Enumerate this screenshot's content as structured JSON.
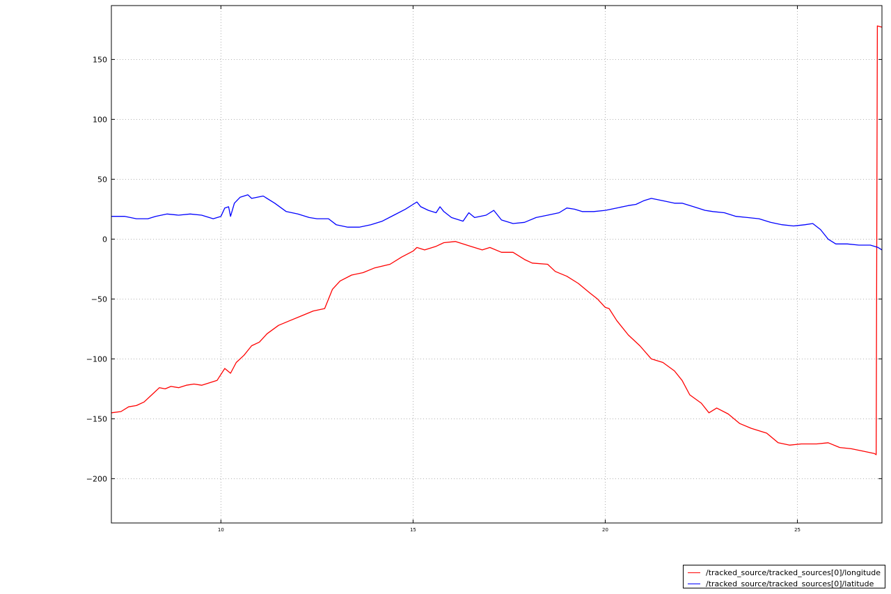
{
  "chart_data": {
    "type": "line",
    "title": "",
    "xlabel": "",
    "ylabel": "",
    "xlim": [
      7.15,
      27.2
    ],
    "ylim": [
      -237,
      195
    ],
    "grid": true,
    "legend_position": "bottom-right, outside plot",
    "x_ticks": [
      10,
      15,
      20,
      25
    ],
    "y_ticks": [
      150,
      100,
      50,
      0,
      -50,
      -100,
      -150,
      -200
    ],
    "y_tick_labels": [
      "150",
      "100",
      "50",
      "0",
      "−50",
      "−100",
      "−150",
      "−200"
    ],
    "series": [
      {
        "name": "/tracked_source/tracked_sources[0]/longitude",
        "color": "#ff0000",
        "points": [
          [
            7.15,
            -145
          ],
          [
            7.4,
            -144
          ],
          [
            7.6,
            -140
          ],
          [
            7.8,
            -139
          ],
          [
            8.0,
            -136
          ],
          [
            8.2,
            -130
          ],
          [
            8.4,
            -124
          ],
          [
            8.55,
            -125
          ],
          [
            8.7,
            -123
          ],
          [
            8.9,
            -124
          ],
          [
            9.1,
            -122
          ],
          [
            9.3,
            -121
          ],
          [
            9.5,
            -122
          ],
          [
            9.7,
            -120
          ],
          [
            9.9,
            -118
          ],
          [
            10.1,
            -108
          ],
          [
            10.25,
            -112
          ],
          [
            10.4,
            -103
          ],
          [
            10.6,
            -97
          ],
          [
            10.8,
            -89
          ],
          [
            11.0,
            -86
          ],
          [
            11.2,
            -79
          ],
          [
            11.5,
            -72
          ],
          [
            11.8,
            -68
          ],
          [
            12.1,
            -64
          ],
          [
            12.4,
            -60
          ],
          [
            12.7,
            -58
          ],
          [
            12.9,
            -42
          ],
          [
            13.1,
            -35
          ],
          [
            13.4,
            -30
          ],
          [
            13.7,
            -28
          ],
          [
            14.0,
            -24
          ],
          [
            14.4,
            -21
          ],
          [
            14.7,
            -15
          ],
          [
            15.0,
            -10
          ],
          [
            15.1,
            -7
          ],
          [
            15.3,
            -9
          ],
          [
            15.6,
            -6
          ],
          [
            15.8,
            -3
          ],
          [
            16.1,
            -2
          ],
          [
            16.3,
            -4
          ],
          [
            16.5,
            -6
          ],
          [
            16.8,
            -9
          ],
          [
            17.0,
            -7
          ],
          [
            17.3,
            -11
          ],
          [
            17.6,
            -11
          ],
          [
            17.9,
            -17
          ],
          [
            18.1,
            -20
          ],
          [
            18.5,
            -21
          ],
          [
            18.7,
            -27
          ],
          [
            19.0,
            -31
          ],
          [
            19.3,
            -37
          ],
          [
            19.6,
            -45
          ],
          [
            19.8,
            -50
          ],
          [
            20.0,
            -57
          ],
          [
            20.1,
            -58
          ],
          [
            20.3,
            -68
          ],
          [
            20.6,
            -80
          ],
          [
            20.9,
            -89
          ],
          [
            21.2,
            -100
          ],
          [
            21.5,
            -103
          ],
          [
            21.8,
            -110
          ],
          [
            22.0,
            -118
          ],
          [
            22.2,
            -130
          ],
          [
            22.5,
            -137
          ],
          [
            22.7,
            -145
          ],
          [
            22.9,
            -141
          ],
          [
            23.2,
            -146
          ],
          [
            23.5,
            -154
          ],
          [
            23.8,
            -158
          ],
          [
            24.2,
            -162
          ],
          [
            24.5,
            -170
          ],
          [
            24.8,
            -172
          ],
          [
            25.1,
            -171
          ],
          [
            25.5,
            -171
          ],
          [
            25.8,
            -170
          ],
          [
            26.1,
            -174
          ],
          [
            26.4,
            -175
          ],
          [
            26.7,
            -177
          ],
          [
            27.0,
            -179
          ],
          [
            27.05,
            -180
          ],
          [
            27.08,
            178
          ],
          [
            27.2,
            177
          ]
        ]
      },
      {
        "name": "/tracked_source/tracked_sources[0]/latitude",
        "color": "#0000ff",
        "points": [
          [
            7.15,
            19
          ],
          [
            7.5,
            19
          ],
          [
            7.8,
            17
          ],
          [
            8.1,
            17
          ],
          [
            8.3,
            19
          ],
          [
            8.6,
            21
          ],
          [
            8.9,
            20
          ],
          [
            9.2,
            21
          ],
          [
            9.5,
            20
          ],
          [
            9.8,
            17
          ],
          [
            10.0,
            19
          ],
          [
            10.1,
            26
          ],
          [
            10.2,
            27
          ],
          [
            10.25,
            19
          ],
          [
            10.35,
            30
          ],
          [
            10.5,
            35
          ],
          [
            10.7,
            37
          ],
          [
            10.8,
            34
          ],
          [
            11.1,
            36
          ],
          [
            11.4,
            30
          ],
          [
            11.7,
            23
          ],
          [
            12.0,
            21
          ],
          [
            12.3,
            18
          ],
          [
            12.5,
            17
          ],
          [
            12.8,
            17
          ],
          [
            13.0,
            12
          ],
          [
            13.3,
            10
          ],
          [
            13.6,
            10
          ],
          [
            13.9,
            12
          ],
          [
            14.2,
            15
          ],
          [
            14.5,
            20
          ],
          [
            14.8,
            25
          ],
          [
            15.0,
            29
          ],
          [
            15.1,
            31
          ],
          [
            15.2,
            27
          ],
          [
            15.4,
            24
          ],
          [
            15.6,
            22
          ],
          [
            15.7,
            27
          ],
          [
            15.8,
            23
          ],
          [
            16.0,
            18
          ],
          [
            16.3,
            15
          ],
          [
            16.45,
            22
          ],
          [
            16.6,
            18
          ],
          [
            16.9,
            20
          ],
          [
            17.1,
            24
          ],
          [
            17.3,
            16
          ],
          [
            17.6,
            13
          ],
          [
            17.9,
            14
          ],
          [
            18.2,
            18
          ],
          [
            18.5,
            20
          ],
          [
            18.8,
            22
          ],
          [
            19.0,
            26
          ],
          [
            19.2,
            25
          ],
          [
            19.4,
            23
          ],
          [
            19.7,
            23
          ],
          [
            20.0,
            24
          ],
          [
            20.3,
            26
          ],
          [
            20.6,
            28
          ],
          [
            20.8,
            29
          ],
          [
            21.0,
            32
          ],
          [
            21.2,
            34
          ],
          [
            21.5,
            32
          ],
          [
            21.8,
            30
          ],
          [
            22.0,
            30
          ],
          [
            22.3,
            27
          ],
          [
            22.6,
            24
          ],
          [
            22.8,
            23
          ],
          [
            23.1,
            22
          ],
          [
            23.4,
            19
          ],
          [
            23.7,
            18
          ],
          [
            24.0,
            17
          ],
          [
            24.3,
            14
          ],
          [
            24.6,
            12
          ],
          [
            24.9,
            11
          ],
          [
            25.2,
            12
          ],
          [
            25.4,
            13
          ],
          [
            25.6,
            8
          ],
          [
            25.8,
            0
          ],
          [
            26.0,
            -4
          ],
          [
            26.3,
            -4
          ],
          [
            26.6,
            -5
          ],
          [
            26.9,
            -5
          ],
          [
            27.1,
            -7
          ],
          [
            27.2,
            -9
          ]
        ]
      }
    ]
  }
}
